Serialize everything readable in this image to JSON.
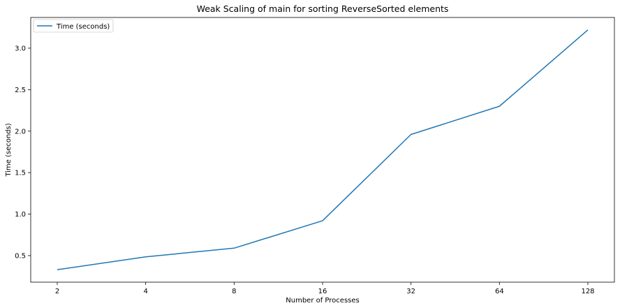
{
  "chart_data": {
    "type": "line",
    "title": "Weak Scaling of main for sorting ReverseSorted elements",
    "xlabel": "Number of Processes",
    "ylabel": "Time (seconds)",
    "categories": [
      "2",
      "4",
      "8",
      "16",
      "32",
      "64",
      "128"
    ],
    "series": [
      {
        "name": "Time (seconds)",
        "color": "#1f77b4",
        "values": [
          0.33,
          0.485,
          0.59,
          0.92,
          1.96,
          2.3,
          3.22
        ]
      }
    ],
    "ylim": [
      0.18,
      3.37
    ],
    "yticks": [
      "0.5",
      "1.0",
      "1.5",
      "2.0",
      "2.5",
      "3.0"
    ],
    "grid": false,
    "legend_position": "top-left"
  }
}
